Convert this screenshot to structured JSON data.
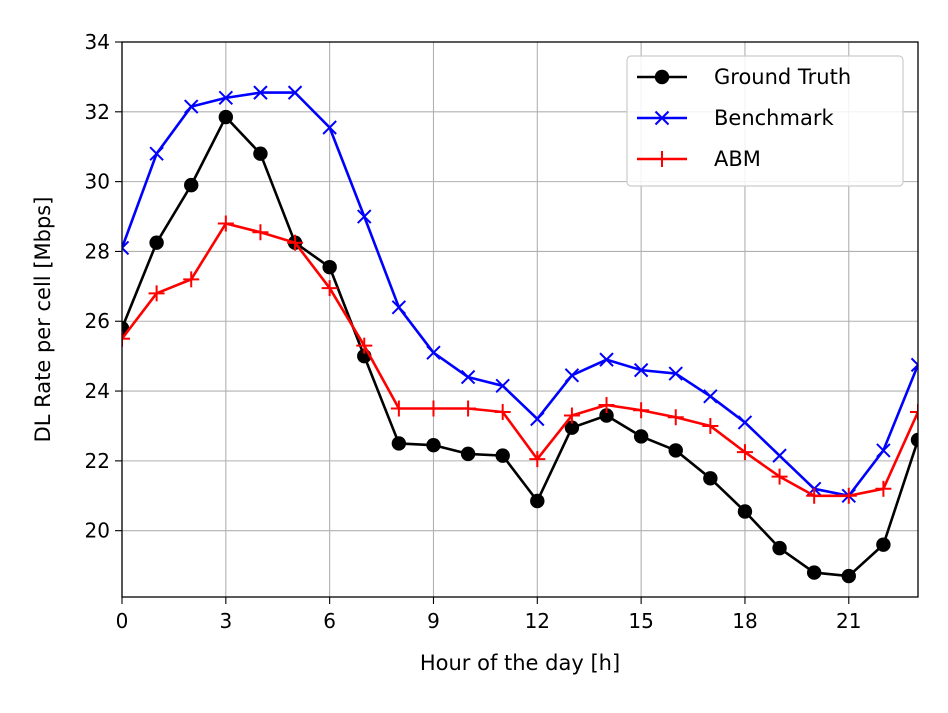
{
  "chart_data": {
    "type": "line",
    "title": "",
    "xlabel": "Hour of the day [h]",
    "ylabel": "DL Rate per cell [Mbps]",
    "xlim": [
      0,
      23
    ],
    "ylim": [
      18.1,
      34
    ],
    "xticks": [
      0,
      3,
      6,
      9,
      12,
      15,
      18,
      21
    ],
    "yticks": [
      20,
      22,
      24,
      26,
      28,
      30,
      32,
      34
    ],
    "grid": true,
    "legend_position": "top-right",
    "x": [
      0,
      1,
      2,
      3,
      4,
      5,
      6,
      7,
      8,
      9,
      10,
      11,
      12,
      13,
      14,
      15,
      16,
      17,
      18,
      19,
      20,
      21,
      22,
      23
    ],
    "series": [
      {
        "name": "Ground Truth",
        "color": "#000000",
        "marker": "circle",
        "values": [
          25.8,
          28.25,
          29.9,
          31.85,
          30.8,
          28.25,
          27.55,
          25.0,
          22.5,
          22.45,
          22.2,
          22.15,
          20.85,
          22.95,
          23.3,
          22.7,
          22.3,
          21.5,
          20.55,
          19.5,
          18.8,
          18.7,
          19.6,
          22.6
        ]
      },
      {
        "name": "Benchmark",
        "color": "#0000ff",
        "marker": "x",
        "values": [
          28.1,
          30.8,
          32.15,
          32.4,
          32.55,
          32.55,
          31.55,
          29.0,
          26.4,
          25.1,
          24.4,
          24.15,
          23.2,
          24.45,
          24.9,
          24.6,
          24.5,
          23.85,
          23.1,
          22.15,
          21.2,
          21.0,
          22.3,
          24.75
        ]
      },
      {
        "name": "ABM",
        "color": "#ff0000",
        "marker": "plus",
        "values": [
          25.5,
          26.8,
          27.2,
          28.8,
          28.55,
          28.25,
          26.95,
          25.3,
          23.5,
          23.5,
          23.5,
          23.4,
          22.05,
          23.3,
          23.6,
          23.45,
          23.25,
          23.0,
          22.25,
          21.55,
          21.0,
          21.0,
          21.2,
          23.4
        ]
      }
    ]
  }
}
